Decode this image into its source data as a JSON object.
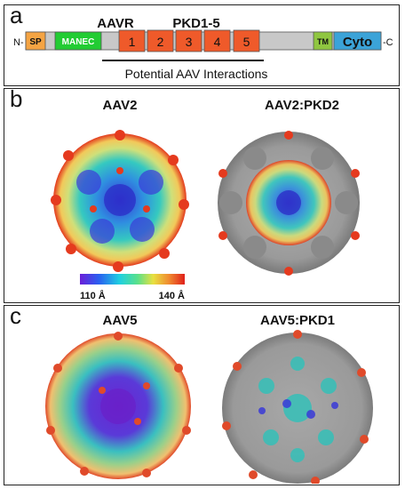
{
  "panel_a": {
    "label": "a",
    "aavr_label": "AAVR",
    "pkd_label": "PKD1-5",
    "n_term": "N-",
    "c_term": "-C",
    "interaction_label": "Potential AAV Interactions",
    "domains": [
      {
        "id": "sp",
        "label": "SP",
        "color": "#f5a443"
      },
      {
        "id": "manec",
        "label": "MANEC",
        "color": "#22cc33"
      },
      {
        "id": "pkd1",
        "label": "1",
        "color": "#ef5a2a"
      },
      {
        "id": "pkd2",
        "label": "2",
        "color": "#ef5a2a"
      },
      {
        "id": "pkd3",
        "label": "3",
        "color": "#ef5a2a"
      },
      {
        "id": "pkd4",
        "label": "4",
        "color": "#ef5a2a"
      },
      {
        "id": "pkd5",
        "label": "5",
        "color": "#ef5a2a"
      },
      {
        "id": "tm",
        "label": "TM",
        "color": "#8fc640"
      },
      {
        "id": "cyto",
        "label": "Cyto",
        "color": "#3ba3d8"
      }
    ]
  },
  "panel_b": {
    "label": "b",
    "left_title": "AAV2",
    "right_title": "AAV2:PKD2",
    "scale_min": "110 Å",
    "scale_max": "140 Å"
  },
  "panel_c": {
    "label": "c",
    "left_title": "AAV5",
    "right_title": "AAV5:PKD1"
  }
}
